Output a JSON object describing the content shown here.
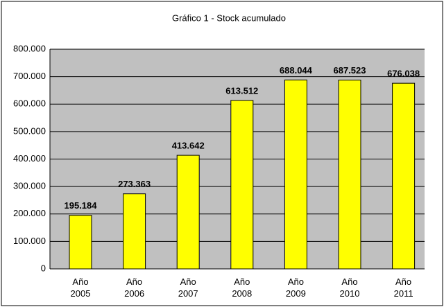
{
  "chart_data": {
    "type": "bar",
    "title": "Gráfico 1 - Stock acumulado",
    "categories": [
      "Año 2005",
      "Año 2006",
      "Año 2007",
      "Año 2008",
      "Año 2009",
      "Año 2010",
      "Año 2011"
    ],
    "values": [
      195184,
      273363,
      413642,
      613512,
      688044,
      687523,
      676038
    ],
    "value_labels": [
      "195.184",
      "273.363",
      "413.642",
      "613.512",
      "688.044",
      "687.523",
      "676.038"
    ],
    "color": "#ffff00",
    "ylim": [
      0,
      800000
    ],
    "yticks": [
      0,
      {
        "value": 100000,
        "label": "100.000"
      },
      {
        "value": 200000,
        "label": "200.000"
      },
      {
        "value": 300000,
        "label": "300.000"
      },
      {
        "value": 400000,
        "label": "400.000"
      },
      {
        "value": 500000,
        "label": "500.000"
      },
      {
        "value": 600000,
        "label": "600.000"
      },
      {
        "value": 700000,
        "label": "700.000"
      },
      {
        "value": 800000,
        "label": "800.000"
      }
    ],
    "grid": true
  }
}
